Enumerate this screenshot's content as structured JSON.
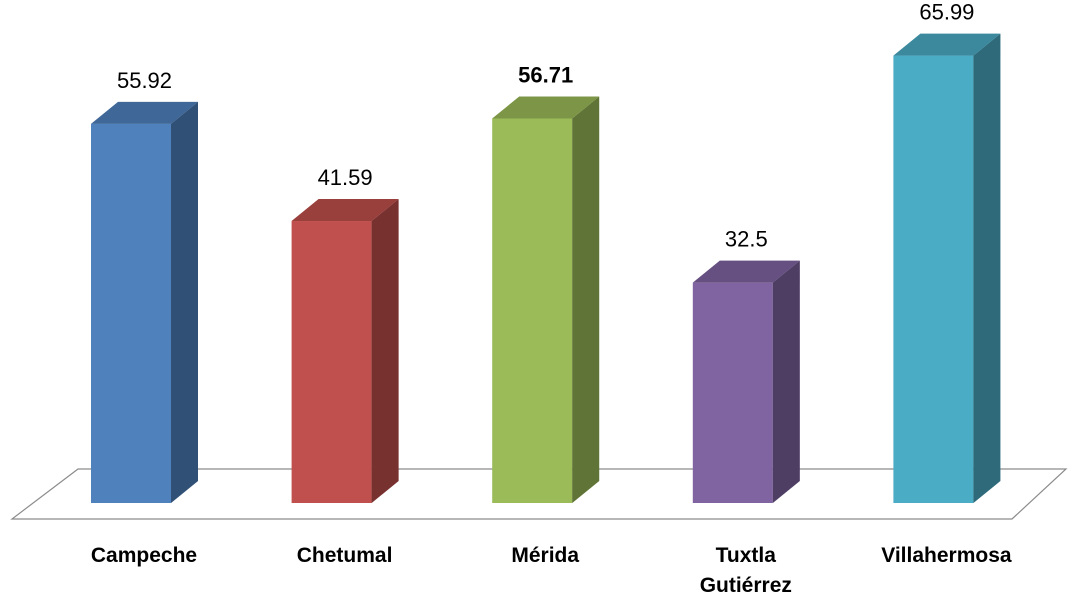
{
  "chart_data": {
    "type": "bar3d",
    "categories": [
      "Campeche",
      "Chetumal",
      "Mérida",
      "Tuxtla Gutiérrez",
      "Villahermosa"
    ],
    "values": [
      55.92,
      41.59,
      56.71,
      32.5,
      65.99
    ],
    "colors": [
      "#4f81bd",
      "#c0504d",
      "#9bbb59",
      "#8064a2",
      "#4bacc6"
    ],
    "value_label_bold": [
      false,
      false,
      true,
      false,
      false
    ]
  }
}
